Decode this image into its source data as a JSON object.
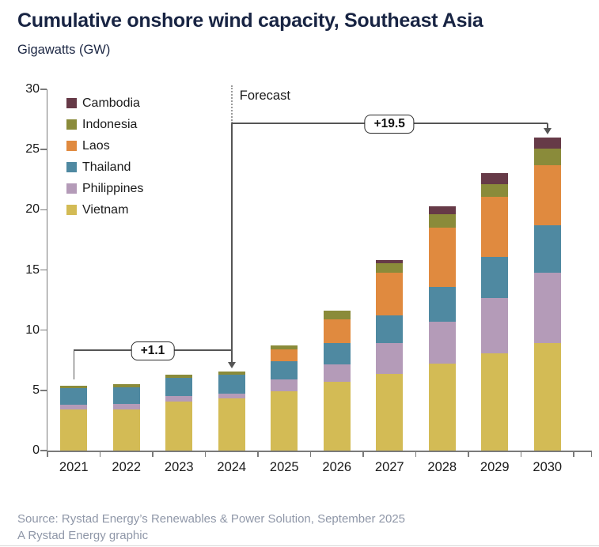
{
  "header": {
    "title": "Cumulative onshore wind capacity, Southeast Asia",
    "subtitle": "Gigawatts (GW)"
  },
  "chart_data": {
    "type": "bar",
    "stacked": true,
    "title": "Cumulative onshore wind capacity, Southeast Asia",
    "ylabel": "Gigawatts (GW)",
    "ylim": [
      0,
      30
    ],
    "yticks": [
      0,
      5,
      10,
      15,
      20,
      25,
      30
    ],
    "grid": false,
    "legend_position": "top-left-vertical",
    "categories": [
      "2021",
      "2022",
      "2023",
      "2024",
      "2025",
      "2026",
      "2027",
      "2028",
      "2029",
      "2030"
    ],
    "series": [
      {
        "name": "Vietnam",
        "color": "#d3bb55",
        "values": [
          3.4,
          3.4,
          4.1,
          4.3,
          4.9,
          5.7,
          6.4,
          7.2,
          8.1,
          8.9
        ]
      },
      {
        "name": "Philippines",
        "color": "#b49bb8",
        "values": [
          0.4,
          0.5,
          0.45,
          0.45,
          1.0,
          1.45,
          2.5,
          3.5,
          4.6,
          5.9
        ]
      },
      {
        "name": "Thailand",
        "color": "#4f89a1",
        "values": [
          1.4,
          1.35,
          1.5,
          1.55,
          1.5,
          1.75,
          2.35,
          2.9,
          3.4,
          3.9
        ]
      },
      {
        "name": "Laos",
        "color": "#e08a3f",
        "values": [
          0,
          0,
          0,
          0,
          1.0,
          2.0,
          3.5,
          4.9,
          5.0,
          5.0
        ]
      },
      {
        "name": "Indonesia",
        "color": "#8a8b3a",
        "values": [
          0.2,
          0.25,
          0.25,
          0.25,
          0.3,
          0.7,
          0.8,
          1.1,
          1.05,
          1.4
        ]
      },
      {
        "name": "Cambodia",
        "color": "#663a47",
        "values": [
          0,
          0,
          0,
          0,
          0,
          0,
          0.25,
          0.7,
          0.9,
          0.9
        ]
      }
    ],
    "totals": [
      5.4,
      5.5,
      6.3,
      6.55,
      8.7,
      11.6,
      15.8,
      20.3,
      23.05,
      26.0
    ],
    "legend_order": [
      "Cambodia",
      "Indonesia",
      "Laos",
      "Thailand",
      "Philippines",
      "Vietnam"
    ],
    "forecast_label": "Forecast",
    "forecast_divider_at_category": "2024",
    "annotations": [
      {
        "type": "bracket",
        "label": "+1.1",
        "from_category": "2021",
        "to_category": "2024"
      },
      {
        "type": "bracket",
        "label": "+19.5",
        "from_category": "2024",
        "to_category": "2030"
      }
    ]
  },
  "footer": {
    "source": "Source: Rystad Energy’s Renewables & Power Solution, September 2025",
    "credit": "A Rystad Energy graphic"
  }
}
